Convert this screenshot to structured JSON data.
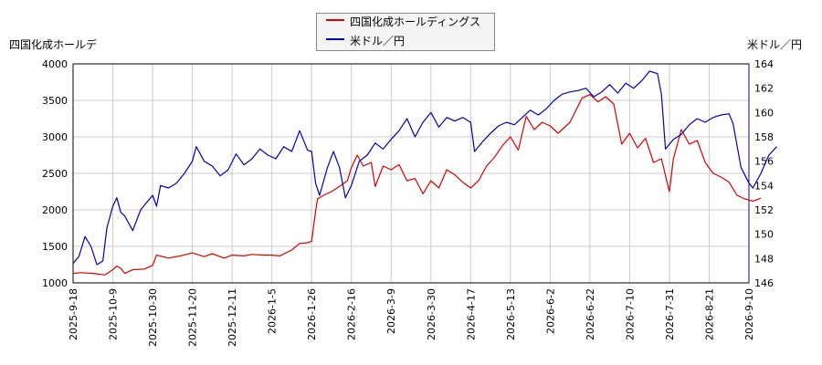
{
  "chart_data": {
    "type": "line",
    "legend": {
      "placement": "top-center",
      "entries": [
        {
          "label": "四国化成ホールディングス",
          "color": "#dd0000"
        },
        {
          "label": "米ドル／円",
          "color": "#0000bb"
        }
      ]
    },
    "left_axis": {
      "label": "四国化成ホールデ",
      "ylim": [
        1000,
        4000
      ],
      "ticks": [
        "1000",
        "1500",
        "2000",
        "2500",
        "3000",
        "3500",
        "4000"
      ],
      "color": "#dd0000"
    },
    "right_axis": {
      "label": "米ドル／円",
      "ylim": [
        146,
        164
      ],
      "ticks": [
        "146",
        "148",
        "150",
        "152",
        "154",
        "156",
        "158",
        "160",
        "162",
        "164"
      ],
      "color": "#0000bb"
    },
    "x_ticks": [
      "2025-9-18",
      "2025-10-9",
      "2025-10-30",
      "2025-11-20",
      "2025-12-11",
      "2026-1-5",
      "2026-1-26",
      "2026-2-16",
      "2026-3-9",
      "2026-3-30",
      "2026-4-17",
      "2026-5-13",
      "2026-6-2",
      "2026-6-22",
      "2026-7-10",
      "2026-7-31",
      "2026-8-21",
      "2026-9-10"
    ],
    "grid": true,
    "series": [
      {
        "name": "四国化成ホールディングス",
        "axis": "left",
        "color": "#dd0000",
        "points": [
          [
            0,
            1130
          ],
          [
            0.2,
            1140
          ],
          [
            0.5,
            1130
          ],
          [
            0.8,
            1110
          ],
          [
            1.0,
            1180
          ],
          [
            1.1,
            1230
          ],
          [
            1.2,
            1200
          ],
          [
            1.3,
            1130
          ],
          [
            1.5,
            1180
          ],
          [
            1.8,
            1190
          ],
          [
            2.0,
            1240
          ],
          [
            2.1,
            1380
          ],
          [
            2.4,
            1340
          ],
          [
            2.7,
            1370
          ],
          [
            3.0,
            1410
          ],
          [
            3.3,
            1360
          ],
          [
            3.5,
            1400
          ],
          [
            3.8,
            1340
          ],
          [
            4.0,
            1380
          ],
          [
            4.3,
            1370
          ],
          [
            4.5,
            1390
          ],
          [
            4.8,
            1380
          ],
          [
            5.0,
            1380
          ],
          [
            5.2,
            1370
          ],
          [
            5.5,
            1450
          ],
          [
            5.7,
            1540
          ],
          [
            5.9,
            1550
          ],
          [
            6.0,
            1570
          ],
          [
            6.1,
            1980
          ],
          [
            6.15,
            2150
          ],
          [
            6.3,
            2200
          ],
          [
            6.5,
            2250
          ],
          [
            6.7,
            2320
          ],
          [
            6.9,
            2400
          ],
          [
            7.0,
            2580
          ],
          [
            7.15,
            2750
          ],
          [
            7.3,
            2600
          ],
          [
            7.5,
            2650
          ],
          [
            7.6,
            2320
          ],
          [
            7.8,
            2600
          ],
          [
            8.0,
            2550
          ],
          [
            8.2,
            2620
          ],
          [
            8.4,
            2400
          ],
          [
            8.6,
            2430
          ],
          [
            8.8,
            2220
          ],
          [
            9.0,
            2400
          ],
          [
            9.2,
            2300
          ],
          [
            9.4,
            2550
          ],
          [
            9.6,
            2480
          ],
          [
            9.8,
            2380
          ],
          [
            10.0,
            2300
          ],
          [
            10.2,
            2400
          ],
          [
            10.4,
            2600
          ],
          [
            10.6,
            2720
          ],
          [
            10.8,
            2880
          ],
          [
            11.0,
            3000
          ],
          [
            11.2,
            2820
          ],
          [
            11.4,
            3280
          ],
          [
            11.6,
            3100
          ],
          [
            11.8,
            3200
          ],
          [
            12.0,
            3150
          ],
          [
            12.2,
            3050
          ],
          [
            12.5,
            3200
          ],
          [
            12.8,
            3530
          ],
          [
            13.0,
            3580
          ],
          [
            13.2,
            3480
          ],
          [
            13.4,
            3550
          ],
          [
            13.6,
            3450
          ],
          [
            13.8,
            2900
          ],
          [
            14.0,
            3050
          ],
          [
            14.2,
            2850
          ],
          [
            14.4,
            2980
          ],
          [
            14.6,
            2650
          ],
          [
            14.8,
            2700
          ],
          [
            15.0,
            2250
          ],
          [
            15.1,
            2700
          ],
          [
            15.3,
            3100
          ],
          [
            15.5,
            2900
          ],
          [
            15.7,
            2950
          ],
          [
            15.9,
            2650
          ],
          [
            16.1,
            2500
          ],
          [
            16.3,
            2450
          ],
          [
            16.5,
            2380
          ],
          [
            16.7,
            2200
          ],
          [
            16.9,
            2150
          ],
          [
            17.1,
            2120
          ],
          [
            17.3,
            2160
          ]
        ]
      },
      {
        "name": "米ドル／円",
        "axis": "right",
        "color": "#0000bb",
        "points": [
          [
            0,
            147.6
          ],
          [
            0.15,
            148.2
          ],
          [
            0.3,
            149.8
          ],
          [
            0.45,
            149.0
          ],
          [
            0.6,
            147.5
          ],
          [
            0.75,
            147.8
          ],
          [
            0.85,
            150.5
          ],
          [
            1.0,
            152.3
          ],
          [
            1.1,
            153.0
          ],
          [
            1.2,
            151.8
          ],
          [
            1.3,
            151.5
          ],
          [
            1.5,
            150.3
          ],
          [
            1.7,
            152.0
          ],
          [
            2.0,
            153.2
          ],
          [
            2.1,
            152.3
          ],
          [
            2.2,
            154.0
          ],
          [
            2.4,
            153.8
          ],
          [
            2.6,
            154.2
          ],
          [
            2.8,
            155.0
          ],
          [
            3.0,
            156.0
          ],
          [
            3.1,
            157.2
          ],
          [
            3.3,
            156.0
          ],
          [
            3.5,
            155.6
          ],
          [
            3.7,
            154.8
          ],
          [
            3.9,
            155.3
          ],
          [
            4.1,
            156.6
          ],
          [
            4.3,
            155.7
          ],
          [
            4.5,
            156.2
          ],
          [
            4.7,
            157.0
          ],
          [
            4.9,
            156.5
          ],
          [
            5.1,
            156.2
          ],
          [
            5.3,
            157.2
          ],
          [
            5.5,
            156.8
          ],
          [
            5.7,
            158.5
          ],
          [
            5.9,
            156.9
          ],
          [
            6.0,
            156.8
          ],
          [
            6.1,
            154.2
          ],
          [
            6.2,
            153.2
          ],
          [
            6.4,
            155.5
          ],
          [
            6.55,
            156.8
          ],
          [
            6.7,
            155.5
          ],
          [
            6.85,
            153.0
          ],
          [
            7.0,
            154.0
          ],
          [
            7.2,
            156.0
          ],
          [
            7.4,
            156.5
          ],
          [
            7.6,
            157.5
          ],
          [
            7.8,
            157.0
          ],
          [
            8.0,
            157.8
          ],
          [
            8.2,
            158.5
          ],
          [
            8.4,
            159.5
          ],
          [
            8.6,
            158.0
          ],
          [
            8.8,
            159.2
          ],
          [
            9.0,
            160.0
          ],
          [
            9.2,
            158.8
          ],
          [
            9.4,
            159.6
          ],
          [
            9.6,
            159.3
          ],
          [
            9.8,
            159.6
          ],
          [
            10.0,
            159.2
          ],
          [
            10.1,
            156.8
          ],
          [
            10.3,
            157.6
          ],
          [
            10.5,
            158.3
          ],
          [
            10.7,
            158.9
          ],
          [
            10.9,
            159.2
          ],
          [
            11.1,
            159.0
          ],
          [
            11.3,
            159.6
          ],
          [
            11.5,
            160.2
          ],
          [
            11.7,
            159.8
          ],
          [
            11.9,
            160.3
          ],
          [
            12.1,
            161.0
          ],
          [
            12.3,
            161.5
          ],
          [
            12.5,
            161.7
          ],
          [
            12.7,
            161.8
          ],
          [
            12.9,
            162.0
          ],
          [
            13.1,
            161.3
          ],
          [
            13.3,
            161.7
          ],
          [
            13.5,
            162.3
          ],
          [
            13.7,
            161.6
          ],
          [
            13.9,
            162.4
          ],
          [
            14.1,
            162.0
          ],
          [
            14.3,
            162.6
          ],
          [
            14.5,
            163.4
          ],
          [
            14.7,
            163.2
          ],
          [
            14.8,
            161.5
          ],
          [
            14.9,
            157.0
          ],
          [
            15.1,
            157.8
          ],
          [
            15.3,
            158.2
          ],
          [
            15.5,
            159.0
          ],
          [
            15.7,
            159.5
          ],
          [
            15.9,
            159.2
          ],
          [
            16.1,
            159.6
          ],
          [
            16.3,
            159.8
          ],
          [
            16.5,
            159.9
          ],
          [
            16.6,
            159.1
          ],
          [
            16.8,
            155.5
          ],
          [
            17.0,
            154.2
          ],
          [
            17.1,
            153.8
          ],
          [
            17.3,
            155.0
          ],
          [
            17.5,
            156.5
          ],
          [
            17.7,
            157.2
          ]
        ]
      }
    ]
  }
}
